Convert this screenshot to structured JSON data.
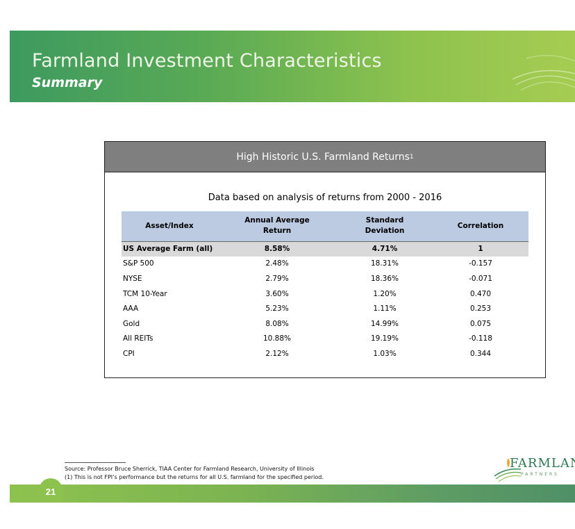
{
  "header": {
    "title": "Farmland Investment Characteristics",
    "subtitle": "Summary"
  },
  "table_box": {
    "heading": "High Historic U.S. Farmland Returns",
    "heading_superscript": "1",
    "note": "Data based on analysis of returns from 2000 - 2016"
  },
  "table": {
    "headers": {
      "asset_line1": "Asset/Index",
      "return_line1": "Annual Average",
      "return_line2": "Return",
      "sd_line1": "Standard",
      "sd_line2": "Deviation",
      "corr_line1": "Correlation"
    },
    "rows": [
      {
        "asset": "US Average Farm (all)",
        "return": "8.58%",
        "sd": "4.71%",
        "corr": "1"
      },
      {
        "asset": "S&P 500",
        "return": "2.48%",
        "sd": "18.31%",
        "corr": "-0.157"
      },
      {
        "asset": "NYSE",
        "return": "2.79%",
        "sd": "18.36%",
        "corr": "-0.071"
      },
      {
        "asset": "TCM 10-Year",
        "return": "3.60%",
        "sd": "1.20%",
        "corr": "0.470"
      },
      {
        "asset": "AAA",
        "return": "5.23%",
        "sd": "1.11%",
        "corr": "0.253"
      },
      {
        "asset": "Gold",
        "return": "8.08%",
        "sd": "14.99%",
        "corr": "0.075"
      },
      {
        "asset": "All REITs",
        "return": "10.88%",
        "sd": "19.19%",
        "corr": "-0.118"
      },
      {
        "asset": "CPI",
        "return": "2.12%",
        "sd": "1.03%",
        "corr": "0.344"
      }
    ]
  },
  "footnotes": {
    "source": "Source: Professor Bruce Sherrick, TIAA Center for Farmland Research, University of Illinois",
    "note1": "(1) This is not FPI’s performance but the returns for all U.S. farmland for the specified period."
  },
  "logo": {
    "word": "FARMLANI",
    "sub": "PARTNERS"
  },
  "footer": {
    "page_number": "21"
  },
  "colors": {
    "header_green": "#5aaa55",
    "table_head_grey": "#7f7f7f",
    "column_header_blue": "#bccbe2",
    "highlight_row_grey": "#d9d9d9"
  }
}
